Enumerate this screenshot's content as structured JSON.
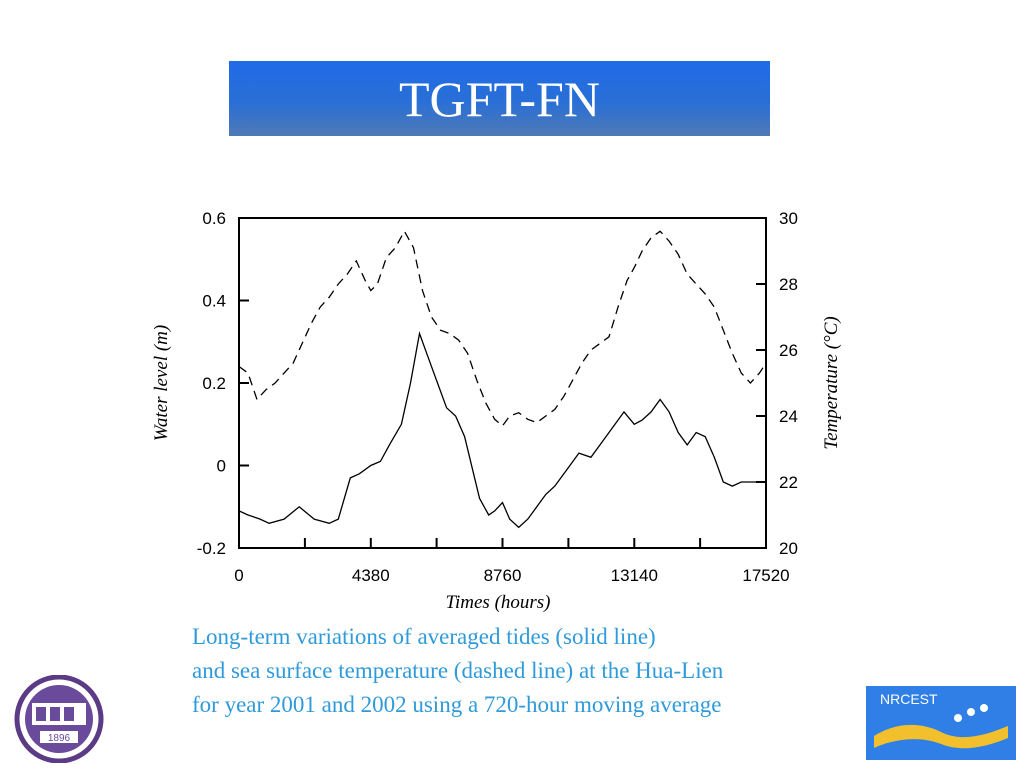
{
  "slide": {
    "title": "TGFT-FN",
    "caption": [
      "Long-term variations of averaged tides (solid line)",
      "and sea surface temperature (dashed line) at the Hua-Lien",
      "for year 2001 and 2002 using a 720-hour moving average"
    ],
    "logo_left": {
      "text": "1896"
    },
    "logo_right": {
      "text": "NRCEST"
    },
    "colors": {
      "title_bar": "#2a6fd6",
      "caption": "#2f9ad9",
      "logo_right_bg": "#2f7fe6",
      "logo_wave": "#f2c02c"
    }
  },
  "chart_data": {
    "type": "line",
    "xlabel": "Times (hours)",
    "ylabel": "Water level (m)",
    "y2label": "Temperature (°C)",
    "xlim": [
      0,
      17520
    ],
    "ylim": [
      -0.2,
      0.6
    ],
    "y2lim": [
      20,
      30
    ],
    "x_ticks": [
      "0",
      "4380",
      "8760",
      "13140",
      "17520"
    ],
    "y_ticks": [
      "-0.2",
      "0",
      "0.2",
      "0.4",
      "0.6"
    ],
    "y2_ticks": [
      "20",
      "22",
      "24",
      "26",
      "28",
      "30"
    ],
    "grid": false,
    "series": [
      {
        "style": "solid",
        "axis": "left",
        "x": [
          0,
          300,
          700,
          1000,
          1500,
          2000,
          2500,
          3000,
          3300,
          3700,
          4000,
          4380,
          4700,
          5000,
          5400,
          5700,
          6000,
          6300,
          6600,
          6900,
          7200,
          7500,
          7800,
          8000,
          8300,
          8500,
          8760,
          9000,
          9300,
          9600,
          9900,
          10200,
          10500,
          10900,
          11300,
          11700,
          12100,
          12500,
          12800,
          13140,
          13400,
          13700,
          14000,
          14300,
          14600,
          14900,
          15200,
          15500,
          15800,
          16100,
          16400,
          16700,
          17000,
          17300,
          17520
        ],
        "y": [
          -0.11,
          -0.12,
          -0.13,
          -0.14,
          -0.13,
          -0.1,
          -0.13,
          -0.14,
          -0.13,
          -0.03,
          -0.02,
          0.0,
          0.01,
          0.05,
          0.1,
          0.2,
          0.32,
          0.26,
          0.2,
          0.14,
          0.12,
          0.07,
          -0.02,
          -0.08,
          -0.12,
          -0.11,
          -0.09,
          -0.13,
          -0.15,
          -0.13,
          -0.1,
          -0.07,
          -0.05,
          -0.01,
          0.03,
          0.02,
          0.06,
          0.1,
          0.13,
          0.1,
          0.11,
          0.13,
          0.16,
          0.13,
          0.08,
          0.05,
          0.08,
          0.07,
          0.02,
          -0.04,
          -0.05,
          -0.04,
          -0.04,
          -0.04,
          -0.04
        ]
      },
      {
        "style": "dashed",
        "axis": "right",
        "x": [
          0,
          300,
          600,
          900,
          1200,
          1500,
          1800,
          2100,
          2400,
          2700,
          3000,
          3300,
          3600,
          3900,
          4200,
          4380,
          4600,
          4900,
          5200,
          5500,
          5800,
          6100,
          6400,
          6700,
          7000,
          7300,
          7600,
          7900,
          8200,
          8500,
          8760,
          9000,
          9300,
          9600,
          9900,
          10200,
          10500,
          10800,
          11100,
          11400,
          11700,
          12000,
          12300,
          12600,
          12900,
          13140,
          13400,
          13700,
          14000,
          14300,
          14600,
          14900,
          15200,
          15500,
          15800,
          16100,
          16400,
          16700,
          17000,
          17300,
          17520
        ],
        "y": [
          25.5,
          25.3,
          24.5,
          24.8,
          25.0,
          25.3,
          25.6,
          26.2,
          26.8,
          27.3,
          27.6,
          28.0,
          28.3,
          28.7,
          28.1,
          27.8,
          28.0,
          28.8,
          29.1,
          29.6,
          29.1,
          27.8,
          27.0,
          26.6,
          26.5,
          26.3,
          25.9,
          25.1,
          24.4,
          23.9,
          23.7,
          24.0,
          24.1,
          23.9,
          23.8,
          24.0,
          24.2,
          24.6,
          25.1,
          25.6,
          26.0,
          26.2,
          26.4,
          27.3,
          28.1,
          28.5,
          29.0,
          29.4,
          29.6,
          29.3,
          28.9,
          28.3,
          28.0,
          27.7,
          27.3,
          26.6,
          25.9,
          25.3,
          25.0,
          25.3,
          25.6
        ]
      }
    ]
  }
}
